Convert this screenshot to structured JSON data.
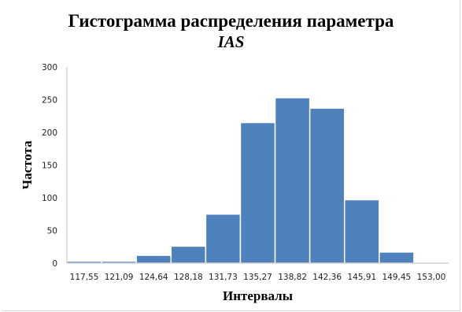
{
  "chart_data": {
    "type": "bar",
    "title": "Гистограмма распределения параметра",
    "subtitle": "IAS",
    "xlabel": "Интервалы",
    "ylabel": "Частота",
    "categories": [
      "117,55",
      "121,09",
      "124,64",
      "128,18",
      "131,73",
      "135,27",
      "138,82",
      "142,36",
      "145,91",
      "149,45",
      "153,00"
    ],
    "values": [
      3,
      3,
      12,
      26,
      75,
      215,
      253,
      237,
      97,
      17,
      0
    ],
    "ylim": [
      0,
      300
    ],
    "yticks": [
      0,
      50,
      100,
      150,
      200,
      250,
      300
    ],
    "grid": false,
    "bar_color": "#4f81bd",
    "bar_edge_color": "#ffffff"
  }
}
